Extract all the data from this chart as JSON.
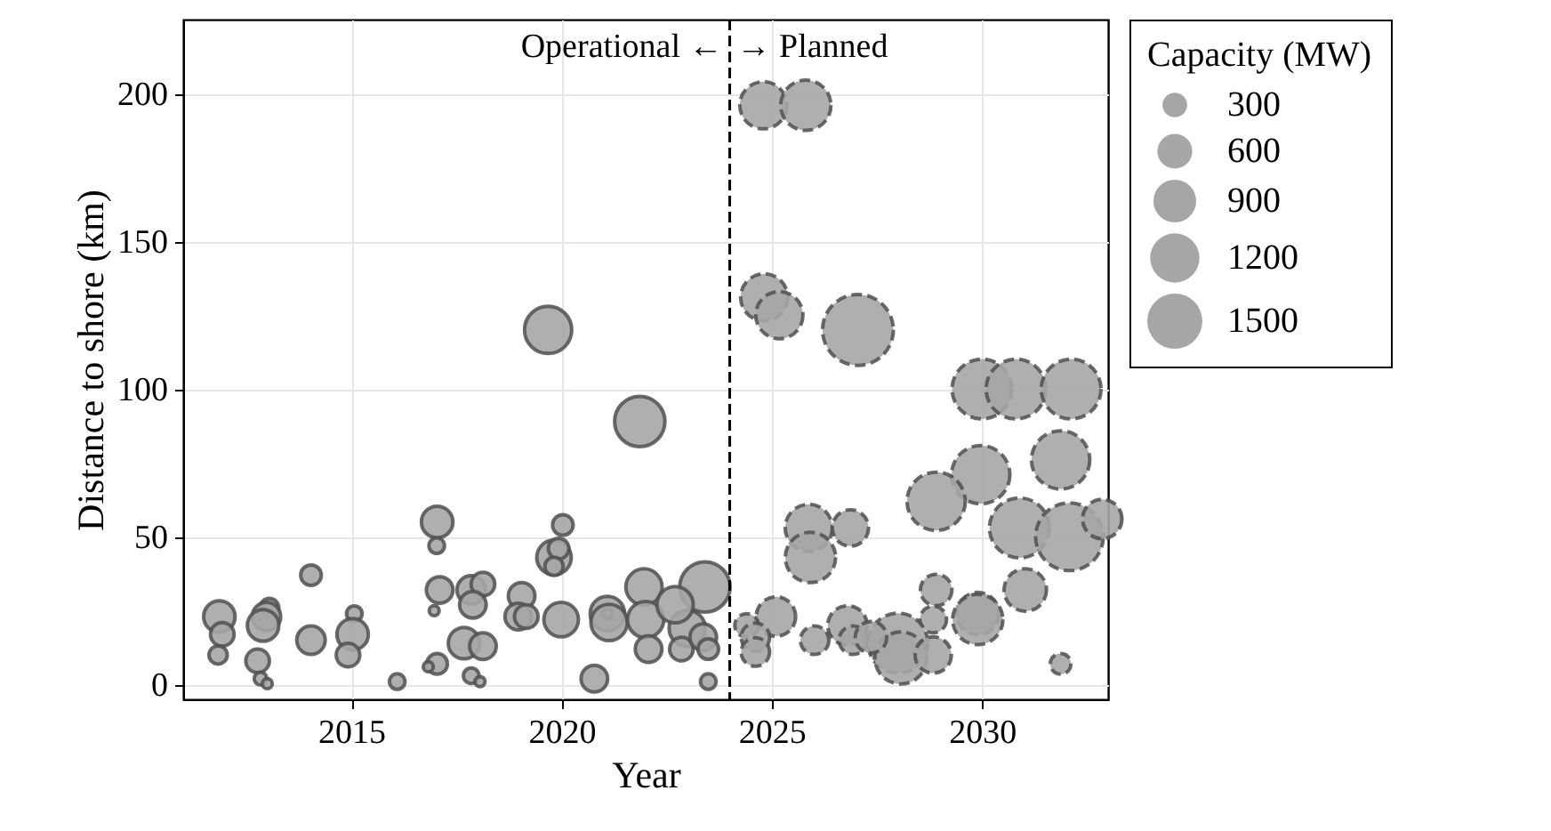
{
  "chart_data": {
    "type": "bubble",
    "xlabel": "Year",
    "ylabel": "Distance to shore (km)",
    "legend_title": "Capacity (MW)",
    "xlim": [
      2011,
      2033
    ],
    "ylim": [
      -5,
      225
    ],
    "xticks": [
      2015,
      2020,
      2025,
      2030
    ],
    "yticks": [
      0,
      50,
      100,
      150,
      200
    ],
    "grid": true,
    "size_legend": [
      300,
      600,
      900,
      1200,
      1500
    ],
    "marker": "circle",
    "ref_lines": [
      {
        "axis": "x",
        "value": 2024,
        "color": "#000000",
        "line_style": "dashed"
      }
    ],
    "annotations": [
      {
        "text": "Operational ←",
        "x": 2024,
        "y": 216
      },
      {
        "text": "→ Planned",
        "x": 2024,
        "y": 216
      }
    ],
    "series": [
      {
        "color": "#a6a6a6",
        "line_style": "solid",
        "x": [
          2011.86,
          2011.93,
          2011.83,
          2012.77,
          2012.84,
          2013.0,
          2013.05,
          2012.98,
          2012.9,
          2014.04,
          2014.04,
          2015.07,
          2015.03,
          2014.92,
          2016.09,
          2017.04,
          2017.03,
          2017.1,
          2016.97,
          2017.04,
          2016.83,
          2017.85,
          2018.13,
          2017.89,
          2017.68,
          2018.13,
          2017.85,
          2018.06,
          2019.05,
          2018.97,
          2019.16,
          2020.03,
          2019.82,
          2019.93,
          2019.82,
          2019.99,
          2021.09,
          2021.09,
          2021.13,
          2020.78,
          2021.96,
          2022.0,
          2022.07,
          2023.41,
          2022.99,
          2022.85,
          2023.37,
          2023.49,
          2023.49,
          2022.7,
          2019.68,
          2021.86
        ],
        "values": [
          23,
          17,
          10,
          8,
          2,
          0.3,
          26,
          23,
          20,
          37,
          15,
          24,
          17,
          10,
          1,
          55,
          47,
          32,
          25,
          7,
          6,
          32,
          34,
          27,
          14,
          13,
          3,
          1,
          30,
          23,
          23,
          54,
          43,
          46,
          40,
          22,
          24,
          24,
          21,
          2,
          33,
          22,
          12,
          33,
          19,
          12,
          16,
          12,
          1,
          27,
          120,
          89
        ],
        "sizes": [
          490,
          275,
          165,
          275,
          80,
          50,
          175,
          400,
          490,
          210,
          400,
          120,
          490,
          275,
          120,
          490,
          120,
          350,
          50,
          210,
          50,
          400,
          275,
          350,
          490,
          350,
          120,
          50,
          350,
          350,
          275,
          210,
          590,
          210,
          165,
          590,
          590,
          50,
          650,
          350,
          650,
          650,
          350,
          1250,
          650,
          275,
          350,
          210,
          120,
          650,
          1100,
          1250
        ]
      },
      {
        "color": "#a6a6a6",
        "line_style": "dashed",
        "x": [
          2024.8,
          2025.81,
          2024.82,
          2025.18,
          2027.05,
          2030.0,
          2030.81,
          2032.12,
          2029.97,
          2028.91,
          2031.87,
          2030.89,
          2032.08,
          2032.86,
          2025.88,
          2026.87,
          2025.92,
          2028.91,
          2031.03,
          2029.9,
          2029.9,
          2028.84,
          2025.1,
          2024.4,
          2024.61,
          2024.61,
          2026.02,
          2026.8,
          2026.94,
          2028.0,
          2028.07,
          2028.84,
          2031.87,
          2027.36
        ],
        "values": [
          196,
          196,
          131,
          125,
          120,
          100,
          100,
          100,
          71,
          62,
          76,
          53,
          50,
          56,
          53,
          53,
          43,
          32,
          32,
          24,
          22,
          22,
          23,
          20,
          16,
          11,
          15,
          20,
          15,
          14,
          9,
          10,
          7,
          16
        ],
        "sizes": [
          1100,
          1250,
          1100,
          1100,
          2480,
          1770,
          1770,
          1770,
          1680,
          1680,
          1680,
          1770,
          2260,
          765,
          1100,
          650,
          1250,
          490,
          890,
          890,
          1250,
          350,
          765,
          275,
          400,
          400,
          400,
          765,
          400,
          1770,
          1340,
          650,
          210,
          490
        ]
      }
    ]
  }
}
